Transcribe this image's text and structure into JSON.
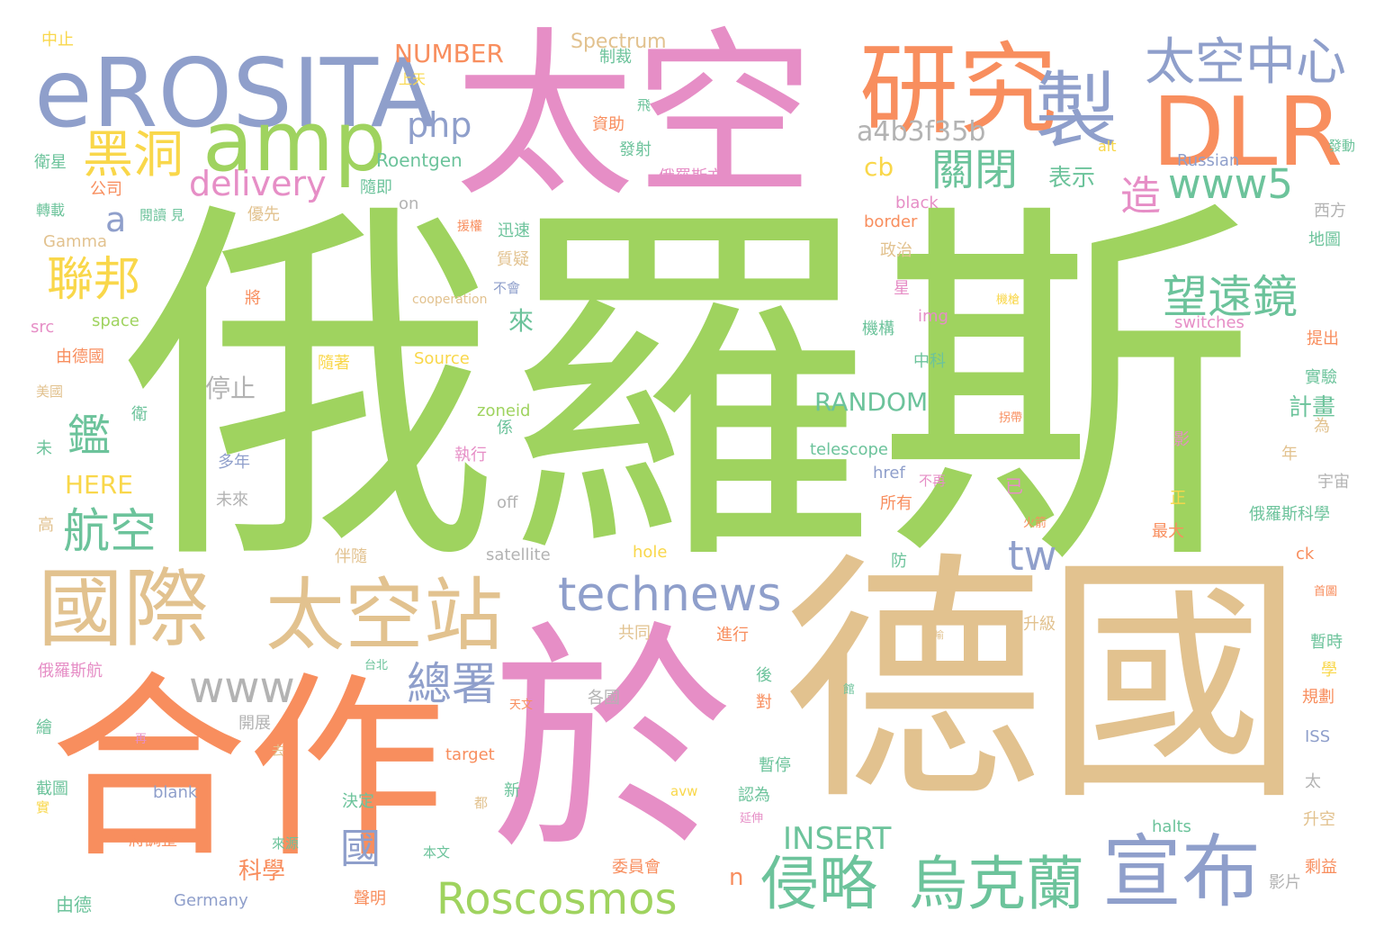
{
  "palette": {
    "green": "#9fd35f",
    "pink": "#e68ec6",
    "tan": "#e2c28f",
    "orange": "#f88e5e",
    "blue": "#8f9fcb",
    "teal": "#6cc39b",
    "yellow": "#f9d74a",
    "gray": "#b3b3b3"
  },
  "words": [
    "俄羅斯",
    "德國",
    "於",
    "太空",
    "合作",
    "研究",
    "eROSITA",
    "amp",
    "DLR",
    "製",
    "太空中心",
    "黑洞",
    "國際",
    "太空站",
    "technews",
    "聯邦",
    "侵略",
    "烏克蘭",
    "宣布",
    "Roscosmos",
    "望遠鏡",
    "www5",
    "鑑",
    "航空",
    "www",
    "總署",
    "tw",
    "關閉",
    "造",
    "a",
    "delivery",
    "php",
    "a4b3f35b",
    "cb",
    "國",
    "NUMBER",
    "Spectrum",
    "RANDOM",
    "INSERT",
    "停止",
    "HERE",
    "科學",
    "計畫",
    "表示",
    "Roentgen",
    "n",
    "Gamma",
    "Russian",
    "中止",
    "衛星",
    "轉載",
    "公司",
    "閱讀 見",
    "src",
    "space",
    "由德國",
    "美國",
    "衛",
    "未",
    "高",
    "繪",
    "截圖",
    "由德",
    "實",
    "上天",
    "制裁",
    "資助",
    "發射",
    "飛",
    "隨即",
    "優先",
    "on",
    "俄羅斯方",
    "迅速",
    "質疑",
    "不會",
    "援權",
    "cooperation",
    "政治",
    "black",
    "border",
    "alt",
    "發動",
    "西方",
    "地圖",
    "機構",
    "星",
    "img",
    "中科",
    "Source",
    "隨著",
    "機槍",
    "拐帶",
    "switches",
    "提出",
    "實驗",
    "將",
    "來",
    "係",
    "zoneid",
    "執行",
    "多年",
    "未來",
    "off",
    "所有",
    "href",
    "不再",
    "已",
    "telescope",
    "宇宙",
    "影",
    "為",
    "年",
    "正",
    "俄羅斯科學",
    "最大",
    "火箭",
    "satellite",
    "hole",
    "伴隨",
    "防",
    "ck",
    "首圖",
    "暫時",
    "升級",
    "共同",
    "進行",
    "學",
    "規劃",
    "後",
    "對",
    "暫停",
    "俄羅斯航",
    "台北",
    "天文",
    "各國",
    "開展",
    "去",
    "再",
    "target",
    "新",
    "都",
    "決定",
    "blank",
    "avw",
    "認為",
    "ISS",
    "太",
    "升空",
    "延伸",
    "halts",
    "將調整",
    "來源",
    "本文",
    "委員會",
    "剩益",
    "影片",
    "Germany",
    "聲明",
    "館",
    "喻"
  ]
}
